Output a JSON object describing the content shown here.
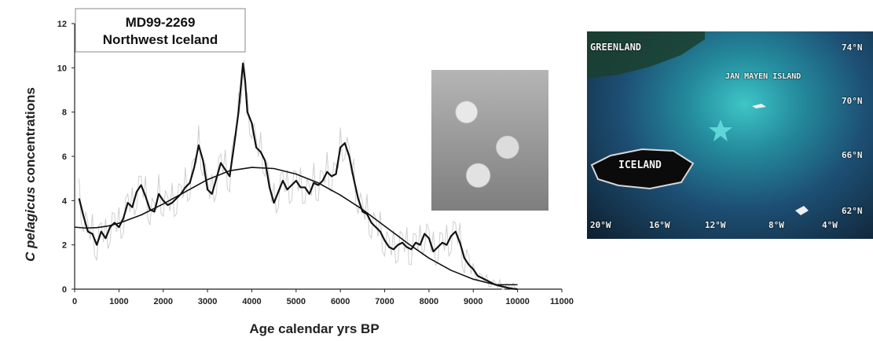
{
  "chart_data": {
    "type": "line",
    "title_lines": [
      "MD99-2269",
      "Northwest Iceland"
    ],
    "xlabel": "Age calendar yrs BP",
    "ylabel_italic": "C pelagicus",
    "ylabel_rest": " concentrations",
    "xlim": [
      0,
      11000
    ],
    "ylim": [
      0,
      12
    ],
    "x_ticks": [
      "0",
      "1000",
      "2000",
      "3000",
      "4000",
      "5000",
      "6000",
      "7000",
      "8000",
      "9000",
      "10000",
      "11000"
    ],
    "y_ticks": [
      "0",
      "2",
      "4",
      "6",
      "8",
      "10",
      "12"
    ],
    "series": [
      {
        "style": "smoothed",
        "x": [
          100,
          200,
          300,
          400,
          500,
          600,
          700,
          800,
          900,
          1000,
          1100,
          1200,
          1300,
          1400,
          1500,
          1600,
          1700,
          1800,
          1900,
          2000,
          2100,
          2200,
          2300,
          2400,
          2500,
          2600,
          2700,
          2800,
          2900,
          3000,
          3100,
          3200,
          3300,
          3400,
          3500,
          3600,
          3700,
          3800,
          3850,
          3900,
          4000,
          4100,
          4200,
          4300,
          4400,
          4500,
          4600,
          4700,
          4800,
          4900,
          5000,
          5100,
          5200,
          5300,
          5400,
          5500,
          5600,
          5700,
          5800,
          5900,
          6000,
          6100,
          6200,
          6300,
          6400,
          6500,
          6600,
          6700,
          6800,
          6900,
          7000,
          7100,
          7200,
          7300,
          7400,
          7500,
          7600,
          7700,
          7800,
          7900,
          8000,
          8100,
          8200,
          8300,
          8400,
          8500,
          8600,
          8700,
          8800,
          8900,
          9000,
          9100,
          9200,
          9300,
          9400,
          9500,
          9600,
          9700,
          9800,
          9900,
          10000
        ],
        "y": [
          4.1,
          3.3,
          2.6,
          2.5,
          2.0,
          2.6,
          2.3,
          2.8,
          3.0,
          2.8,
          3.2,
          3.9,
          3.7,
          4.4,
          4.7,
          4.2,
          3.6,
          3.5,
          4.3,
          4.0,
          3.8,
          3.9,
          4.1,
          4.3,
          4.6,
          4.8,
          5.5,
          6.5,
          5.8,
          4.5,
          4.3,
          5.0,
          5.7,
          5.4,
          5.1,
          6.5,
          8.0,
          10.2,
          9.4,
          8.0,
          7.5,
          6.4,
          6.2,
          5.8,
          4.6,
          3.9,
          4.4,
          4.9,
          4.5,
          4.7,
          4.9,
          4.6,
          4.6,
          4.3,
          4.8,
          4.7,
          4.9,
          5.3,
          5.1,
          5.2,
          6.4,
          6.6,
          6.0,
          5.0,
          4.1,
          3.5,
          3.4,
          3.0,
          2.8,
          2.6,
          2.2,
          1.9,
          1.8,
          2.0,
          2.1,
          1.9,
          1.8,
          2.1,
          2.0,
          2.5,
          2.3,
          1.7,
          1.9,
          2.1,
          2.0,
          2.4,
          2.6,
          2.1,
          1.4,
          1.1,
          0.9,
          0.6,
          0.5,
          0.4,
          0.3,
          0.2,
          0.15,
          0.1,
          0.05,
          0.02,
          0.0
        ]
      },
      {
        "style": "fit",
        "x": [
          0,
          250,
          500,
          750,
          1000,
          1500,
          2000,
          2500,
          3000,
          3500,
          4000,
          4500,
          5000,
          5500,
          6000,
          6500,
          7000,
          7500,
          8000,
          8500,
          9000,
          9500,
          9800,
          10000
        ],
        "y": [
          2.8,
          2.76,
          2.78,
          2.85,
          2.98,
          3.35,
          3.85,
          4.4,
          4.95,
          5.35,
          5.5,
          5.45,
          5.2,
          4.8,
          4.25,
          3.6,
          2.85,
          2.1,
          1.4,
          0.85,
          0.45,
          0.2,
          0.2,
          0.2
        ]
      }
    ],
    "grid": false
  },
  "map": {
    "labels": {
      "greenland": "GREENLAND",
      "jan_mayen": "JAN MAYEN ISLAND",
      "iceland": "ICELAND",
      "lat_74": "74°N",
      "lat_70": "70°N",
      "lat_66": "66°N",
      "lat_62": "62°N",
      "lon_20": "20°W",
      "lon_16": "16°W",
      "lon_12": "12°W",
      "lon_8": "8°W",
      "lon_4": "4°W"
    },
    "marker_icon": "star-icon",
    "marker_color": "#5fd6d8"
  }
}
